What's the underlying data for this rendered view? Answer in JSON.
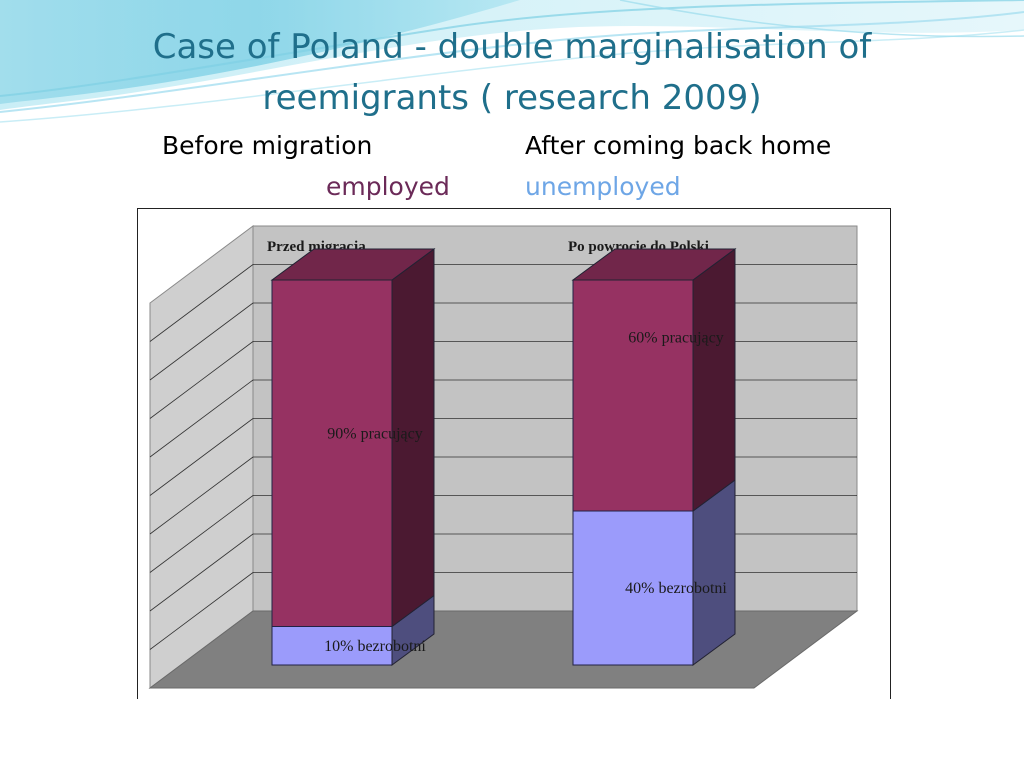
{
  "slide": {
    "title": "Case of Poland - double marginalisation of reemigrants  ( research 2009)",
    "before_label": "Before migration",
    "after_label": "After coming back home",
    "employed_label": "employed",
    "unemployed_label": "unemployed",
    "colors": {
      "title": "#1f6f8b",
      "employed": "#6b2a58",
      "unemployed": "#6ea6e6"
    }
  },
  "chart_data": {
    "type": "bar",
    "stacked": true,
    "three_d": true,
    "categories": [
      "Przed migracja",
      "Po powrocie do Polski"
    ],
    "series": [
      {
        "name": "bezrobotni",
        "values": [
          10,
          40
        ],
        "data_labels": [
          "10% bezrobotni",
          "40% bezrobotni"
        ],
        "color": "#9b9bfb"
      },
      {
        "name": "pracujący",
        "values": [
          90,
          60
        ],
        "data_labels": [
          "90% pracujący",
          "60% pracujący"
        ],
        "color": "#963262"
      }
    ],
    "ylim": [
      0,
      100
    ],
    "grid": true,
    "title": "",
    "xlabel": "",
    "ylabel": ""
  }
}
